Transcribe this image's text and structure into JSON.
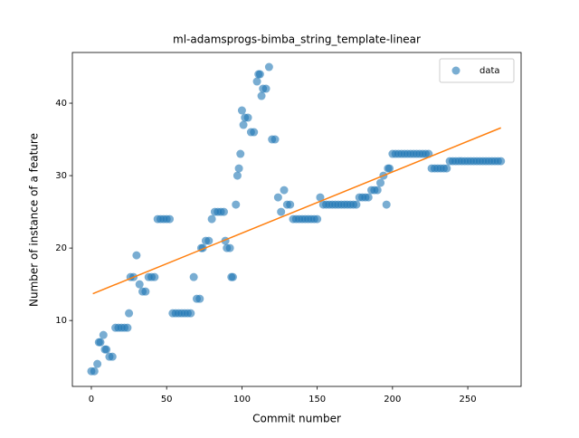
{
  "chart_data": {
    "type": "scatter",
    "title": "ml-adamsprogs-bimba_string_template-linear",
    "x_label": "Commit number",
    "y_label": "Number of instance of a feature",
    "xlim": [
      -12.6,
      285.4
    ],
    "ylim": [
      0.9,
      47
    ],
    "xticks": [
      0,
      50,
      100,
      150,
      200,
      250
    ],
    "yticks": [
      10,
      20,
      30,
      40
    ],
    "legend": "upper right",
    "x": [
      0,
      2,
      4,
      5,
      6,
      8,
      9,
      10,
      12,
      14,
      16,
      18,
      20,
      22,
      24,
      25,
      26,
      28,
      30,
      32,
      34,
      36,
      38,
      40,
      42,
      44,
      46,
      48,
      50,
      52,
      54,
      56,
      58,
      60,
      62,
      64,
      66,
      68,
      70,
      72,
      73,
      74,
      76,
      78,
      80,
      82,
      84,
      86,
      88,
      89,
      90,
      92,
      93,
      94,
      96,
      97,
      98,
      99,
      100,
      101,
      102,
      104,
      106,
      108,
      110,
      111,
      112,
      113,
      114,
      116,
      118,
      120,
      122,
      124,
      126,
      128,
      130,
      132,
      134,
      136,
      138,
      140,
      142,
      144,
      146,
      148,
      150,
      152,
      154,
      156,
      158,
      160,
      162,
      164,
      166,
      168,
      170,
      172,
      174,
      176,
      178,
      180,
      182,
      184,
      186,
      188,
      190,
      192,
      194,
      196,
      197,
      198,
      200,
      202,
      204,
      206,
      208,
      210,
      212,
      214,
      216,
      218,
      220,
      222,
      224,
      226,
      228,
      230,
      232,
      234,
      236,
      238,
      240,
      242,
      244,
      246,
      248,
      250,
      252,
      254,
      256,
      258,
      260,
      262,
      264,
      266,
      268,
      270,
      272
    ],
    "series": [
      {
        "name": "data",
        "color": "#1f77b4",
        "values": [
          3,
          3,
          4,
          7,
          7,
          8,
          6,
          6,
          5,
          5,
          9,
          9,
          9,
          9,
          9,
          11,
          16,
          16,
          19,
          15,
          14,
          14,
          16,
          16,
          16,
          24,
          24,
          24,
          24,
          24,
          11,
          11,
          11,
          11,
          11,
          11,
          11,
          16,
          13,
          13,
          20,
          20,
          21,
          21,
          24,
          25,
          25,
          25,
          25,
          21,
          20,
          20,
          16,
          16,
          26,
          30,
          31,
          33,
          39,
          37,
          38,
          38,
          36,
          36,
          43,
          44,
          44,
          41,
          42,
          42,
          45,
          35,
          35,
          27,
          25,
          28,
          26,
          26,
          24,
          24,
          24,
          24,
          24,
          24,
          24,
          24,
          24,
          27,
          26,
          26,
          26,
          26,
          26,
          26,
          26,
          26,
          26,
          26,
          26,
          26,
          27,
          27,
          27,
          27,
          28,
          28,
          28,
          29,
          30,
          26,
          31,
          31,
          33,
          33,
          33,
          33,
          33,
          33,
          33,
          33,
          33,
          33,
          33,
          33,
          33,
          31,
          31,
          31,
          31,
          31,
          31,
          32,
          32,
          32,
          32,
          32,
          32,
          32,
          32,
          32,
          32,
          32,
          32,
          32,
          32,
          32,
          32,
          32,
          32
        ]
      }
    ],
    "trend": {
      "color": "#ff7f0e",
      "x": [
        1,
        272
      ],
      "values": [
        13.7,
        36.6
      ]
    }
  }
}
